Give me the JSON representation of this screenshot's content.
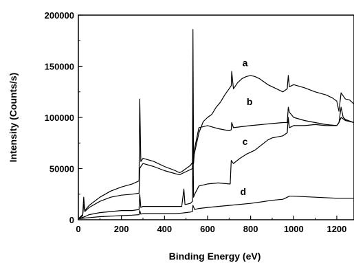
{
  "chart_data": {
    "type": "line",
    "xlabel": "Binding Energy (eV)",
    "ylabel": "Intensity (Counts/s)",
    "xlim": [
      0,
      1280
    ],
    "ylim": [
      0,
      200000
    ],
    "xticks": [
      "0",
      "200",
      "400",
      "600",
      "800",
      "1000",
      "1200"
    ],
    "yticks": [
      "0",
      "50000",
      "100000",
      "150000",
      "200000"
    ],
    "grid": false,
    "series": [
      {
        "name": "a",
        "x": [
          0,
          20,
          25,
          30,
          50,
          100,
          150,
          200,
          250,
          282,
          285,
          290,
          300,
          350,
          400,
          450,
          470,
          480,
          500,
          520,
          530,
          532,
          535,
          540,
          560,
          580,
          600,
          620,
          640,
          660,
          680,
          700,
          710,
          712,
          720,
          740,
          760,
          780,
          800,
          820,
          840,
          860,
          880,
          900,
          920,
          950,
          970,
          975,
          980,
          1000,
          1050,
          1100,
          1150,
          1180,
          1200,
          1210,
          1220,
          1230,
          1240,
          1260,
          1280
        ],
        "y": [
          1000,
          5000,
          22000,
          9000,
          14000,
          22000,
          28000,
          32000,
          35000,
          38000,
          118000,
          57000,
          60000,
          57000,
          52000,
          48000,
          46000,
          47000,
          50000,
          53000,
          56000,
          186000,
          62000,
          66000,
          85000,
          96000,
          100000,
          103000,
          110000,
          115000,
          122000,
          128000,
          131000,
          145000,
          128000,
          134000,
          138000,
          140000,
          141000,
          140000,
          138000,
          135000,
          132000,
          130000,
          128000,
          125000,
          128000,
          141000,
          130000,
          132000,
          129000,
          125000,
          122000,
          119000,
          116000,
          106000,
          124000,
          121000,
          118000,
          117000,
          113000
        ]
      },
      {
        "name": "b",
        "x": [
          0,
          20,
          25,
          30,
          50,
          100,
          150,
          200,
          250,
          282,
          285,
          290,
          300,
          350,
          400,
          450,
          470,
          480,
          500,
          520,
          530,
          532,
          535,
          540,
          560,
          600,
          650,
          700,
          710,
          712,
          720,
          800,
          900,
          950,
          970,
          975,
          980,
          1000,
          1050,
          1100,
          1150,
          1200,
          1210,
          1220,
          1240,
          1280
        ],
        "y": [
          1000,
          4000,
          15000,
          8000,
          12000,
          18000,
          22000,
          24000,
          25000,
          26000,
          50000,
          52000,
          55000,
          52000,
          48000,
          45000,
          44000,
          45000,
          47000,
          49000,
          50000,
          120000,
          55000,
          70000,
          90000,
          92000,
          89000,
          87000,
          88000,
          95000,
          90000,
          92000,
          94000,
          95000,
          95000,
          110000,
          105000,
          100000,
          97000,
          95000,
          93000,
          92000,
          95000,
          100000,
          97000,
          95000
        ]
      },
      {
        "name": "c",
        "x": [
          0,
          30,
          50,
          100,
          150,
          200,
          250,
          282,
          285,
          290,
          300,
          350,
          400,
          450,
          480,
          490,
          495,
          500,
          520,
          530,
          532,
          535,
          540,
          560,
          600,
          650,
          700,
          705,
          710,
          720,
          750,
          780,
          800,
          820,
          850,
          880,
          900,
          950,
          970,
          975,
          980,
          1000,
          1050,
          1100,
          1150,
          1200,
          1210,
          1220,
          1230,
          1240,
          1280
        ],
        "y": [
          1000,
          3000,
          5000,
          7000,
          8000,
          9000,
          9000,
          10000,
          25000,
          12000,
          13000,
          13000,
          13000,
          13000,
          13000,
          30000,
          15000,
          15000,
          16000,
          18000,
          85000,
          22000,
          25000,
          33000,
          35000,
          36000,
          35000,
          35000,
          58000,
          55000,
          60000,
          64000,
          66000,
          68000,
          73000,
          78000,
          80000,
          82000,
          85000,
          100000,
          90000,
          92000,
          92000,
          93000,
          92000,
          92000,
          95000,
          110000,
          100000,
          98000,
          95000
        ]
      },
      {
        "name": "d",
        "x": [
          0,
          50,
          100,
          150,
          200,
          250,
          282,
          285,
          290,
          300,
          350,
          400,
          450,
          480,
          500,
          520,
          530,
          532,
          540,
          560,
          600,
          700,
          800,
          900,
          950,
          970,
          980,
          1000,
          1100,
          1200,
          1280
        ],
        "y": [
          1000,
          2000,
          3000,
          3500,
          4000,
          4500,
          5000,
          9000,
          5500,
          6000,
          6000,
          6000,
          6000,
          6500,
          7000,
          7500,
          8000,
          14000,
          10000,
          11000,
          12000,
          14000,
          16000,
          19000,
          20000,
          22000,
          23000,
          23000,
          22000,
          21000,
          21000
        ]
      }
    ]
  }
}
